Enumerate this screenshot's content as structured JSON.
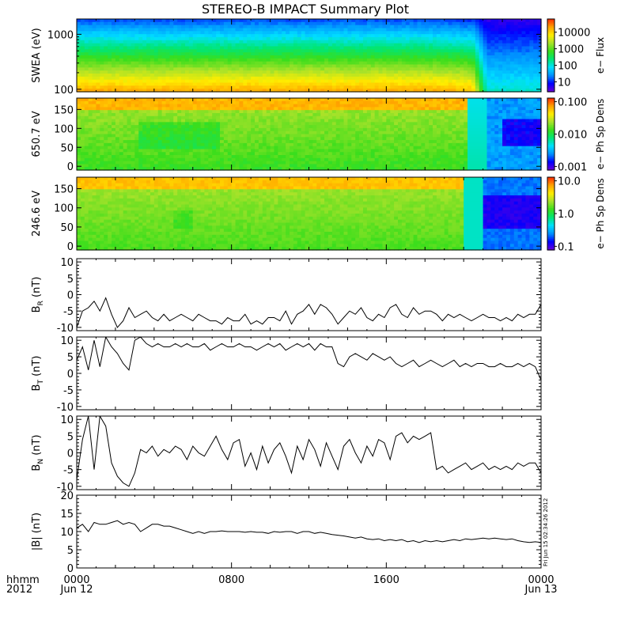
{
  "title": "STEREO-B IMPACT Summary Plot",
  "time_axis": {
    "corner_top": "hhmm",
    "corner_bottom": "2012",
    "ticks": [
      {
        "top": "0000",
        "bottom": "Jun 12",
        "hour": 0
      },
      {
        "top": "0800",
        "bottom": "",
        "hour": 8
      },
      {
        "top": "1600",
        "bottom": "",
        "hour": 16
      },
      {
        "top": "0000",
        "bottom": "Jun 13",
        "hour": 24
      }
    ]
  },
  "timestamp": "Fri Jun 15 02:34:26 2012",
  "colors": {
    "colormap": [
      "#6a00d8",
      "#0000ff",
      "#0090ff",
      "#00e0ff",
      "#00e676",
      "#3ade1c",
      "#a6e22a",
      "#ffee00",
      "#ffa000",
      "#ff2a00"
    ]
  },
  "spectrograms": [
    {
      "id": "swea",
      "ylabel": "SWEA (eV)",
      "ylog": true,
      "ylim": [
        90,
        1900
      ],
      "yticks": [
        {
          "v": 100,
          "label": "100"
        },
        {
          "v": 1000,
          "label": "1000"
        }
      ],
      "colorbar": {
        "label": "e− Flux",
        "ticks": [
          "10",
          "100",
          "1000",
          "10000"
        ],
        "range_log": [
          0.4,
          4.8
        ]
      },
      "structure": {
        "transition_hour": 20.5,
        "before_levels": "red low energy to blue high energy",
        "after_levels": "cyan to violet"
      }
    },
    {
      "id": "pad650",
      "ylabel": "650.7 eV",
      "ylog": false,
      "ylim": [
        -10,
        180
      ],
      "yticks": [
        {
          "v": 0,
          "label": "0"
        },
        {
          "v": 50,
          "label": "50"
        },
        {
          "v": 100,
          "label": "100"
        },
        {
          "v": 150,
          "label": "150"
        }
      ],
      "colorbar": {
        "label": "e− Ph Sp Dens",
        "ticks": [
          "0.001",
          "0.010",
          "0.100"
        ]
      }
    },
    {
      "id": "pad246",
      "ylabel": "246.6 eV",
      "ylog": false,
      "ylim": [
        -10,
        180
      ],
      "yticks": [
        {
          "v": 0,
          "label": "0"
        },
        {
          "v": 50,
          "label": "50"
        },
        {
          "v": 100,
          "label": "100"
        },
        {
          "v": 150,
          "label": "150"
        }
      ],
      "colorbar": {
        "label": "e− Ph Sp Dens",
        "ticks": [
          "0.1",
          "1.0",
          "10.0"
        ]
      }
    }
  ],
  "chart_data": [
    {
      "type": "line",
      "id": "br",
      "ylabel": "B",
      "ylabel_sub": "R",
      "ylabel_unit": "(nT)",
      "ylim": [
        -11,
        11
      ],
      "yticks": [
        -10,
        -5,
        0,
        5,
        10
      ],
      "x": [
        0,
        0.3,
        0.6,
        0.9,
        1.2,
        1.5,
        1.8,
        2.1,
        2.4,
        2.7,
        3,
        3.3,
        3.6,
        3.9,
        4.2,
        4.5,
        4.8,
        5.1,
        5.4,
        5.7,
        6,
        6.3,
        6.6,
        6.9,
        7.2,
        7.5,
        7.8,
        8.1,
        8.4,
        8.7,
        9,
        9.3,
        9.6,
        9.9,
        10.2,
        10.5,
        10.8,
        11.1,
        11.4,
        11.7,
        12,
        12.3,
        12.6,
        12.9,
        13.2,
        13.5,
        13.8,
        14.1,
        14.4,
        14.7,
        15,
        15.3,
        15.6,
        15.9,
        16.2,
        16.5,
        16.8,
        17.1,
        17.4,
        17.7,
        18,
        18.3,
        18.6,
        18.9,
        19.2,
        19.5,
        19.8,
        20.1,
        20.4,
        20.7,
        21,
        21.3,
        21.6,
        21.9,
        22.2,
        22.5,
        22.8,
        23.1,
        23.4,
        23.7,
        24
      ],
      "values": [
        -10,
        -5,
        -4,
        -2,
        -5,
        -1,
        -6,
        -10,
        -8,
        -4,
        -7,
        -6,
        -5,
        -7,
        -8,
        -6,
        -8,
        -7,
        -6,
        -7,
        -8,
        -6,
        -7,
        -8,
        -8,
        -9,
        -7,
        -8,
        -8,
        -6,
        -9,
        -8,
        -9,
        -7,
        -7,
        -8,
        -5,
        -9,
        -6,
        -5,
        -3,
        -6,
        -3,
        -4,
        -6,
        -9,
        -7,
        -5,
        -6,
        -4,
        -7,
        -8,
        -6,
        -7,
        -4,
        -3,
        -6,
        -7,
        -4,
        -6,
        -5,
        -5,
        -6,
        -8,
        -6,
        -7,
        -6,
        -7,
        -8,
        -7,
        -6,
        -7,
        -7,
        -8,
        -7,
        -8,
        -6,
        -7,
        -6,
        -6,
        -3
      ]
    },
    {
      "type": "line",
      "id": "bt",
      "ylabel": "B",
      "ylabel_sub": "T",
      "ylabel_unit": "(nT)",
      "ylim": [
        -11,
        11
      ],
      "yticks": [
        -10,
        -5,
        0,
        5,
        10
      ],
      "x": [
        0,
        0.3,
        0.6,
        0.9,
        1.2,
        1.5,
        1.8,
        2.1,
        2.4,
        2.7,
        3,
        3.3,
        3.6,
        3.9,
        4.2,
        4.5,
        4.8,
        5.1,
        5.4,
        5.7,
        6,
        6.3,
        6.6,
        6.9,
        7.2,
        7.5,
        7.8,
        8.1,
        8.4,
        8.7,
        9,
        9.3,
        9.6,
        9.9,
        10.2,
        10.5,
        10.8,
        11.1,
        11.4,
        11.7,
        12,
        12.3,
        12.6,
        12.9,
        13.2,
        13.5,
        13.8,
        14.1,
        14.4,
        14.7,
        15,
        15.3,
        15.6,
        15.9,
        16.2,
        16.5,
        16.8,
        17.1,
        17.4,
        17.7,
        18,
        18.3,
        18.6,
        18.9,
        19.2,
        19.5,
        19.8,
        20.1,
        20.4,
        20.7,
        21,
        21.3,
        21.6,
        21.9,
        22.2,
        22.5,
        22.8,
        23.1,
        23.4,
        23.7,
        24
      ],
      "values": [
        4,
        8,
        1,
        10,
        2,
        11,
        8,
        6,
        3,
        1,
        10,
        11,
        9,
        8,
        9,
        8,
        8,
        9,
        8,
        9,
        8,
        8,
        9,
        7,
        8,
        9,
        8,
        8,
        9,
        8,
        8,
        7,
        8,
        9,
        8,
        9,
        7,
        8,
        9,
        8,
        9,
        7,
        9,
        8,
        8,
        3,
        2,
        5,
        6,
        5,
        4,
        6,
        5,
        4,
        5,
        3,
        2,
        3,
        4,
        2,
        3,
        4,
        3,
        2,
        3,
        4,
        2,
        3,
        2,
        3,
        3,
        2,
        2,
        3,
        2,
        2,
        3,
        2,
        3,
        2,
        -2
      ]
    },
    {
      "type": "line",
      "id": "bn",
      "ylabel": "B",
      "ylabel_sub": "N",
      "ylabel_unit": "(nT)",
      "ylim": [
        -11,
        11
      ],
      "yticks": [
        -10,
        -5,
        0,
        5,
        10
      ],
      "x": [
        0,
        0.3,
        0.6,
        0.9,
        1.2,
        1.5,
        1.8,
        2.1,
        2.4,
        2.7,
        3,
        3.3,
        3.6,
        3.9,
        4.2,
        4.5,
        4.8,
        5.1,
        5.4,
        5.7,
        6,
        6.3,
        6.6,
        6.9,
        7.2,
        7.5,
        7.8,
        8.1,
        8.4,
        8.7,
        9,
        9.3,
        9.6,
        9.9,
        10.2,
        10.5,
        10.8,
        11.1,
        11.4,
        11.7,
        12,
        12.3,
        12.6,
        12.9,
        13.2,
        13.5,
        13.8,
        14.1,
        14.4,
        14.7,
        15,
        15.3,
        15.6,
        15.9,
        16.2,
        16.5,
        16.8,
        17.1,
        17.4,
        17.7,
        18,
        18.3,
        18.6,
        18.9,
        19.2,
        19.5,
        19.8,
        20.1,
        20.4,
        20.7,
        21,
        21.3,
        21.6,
        21.9,
        22.2,
        22.5,
        22.8,
        23.1,
        23.4,
        23.7,
        24
      ],
      "values": [
        -8,
        4,
        11,
        -5,
        11,
        8,
        -3,
        -7,
        -9,
        -10,
        -6,
        1,
        0,
        2,
        -1,
        1,
        0,
        2,
        1,
        -2,
        2,
        0,
        -1,
        2,
        5,
        1,
        -2,
        3,
        4,
        -4,
        0,
        -5,
        2,
        -3,
        1,
        3,
        -1,
        -6,
        2,
        -2,
        4,
        1,
        -4,
        3,
        -1,
        -5,
        2,
        4,
        0,
        -3,
        2,
        -1,
        4,
        3,
        -2,
        5,
        6,
        3,
        5,
        4,
        5,
        6,
        -5,
        -4,
        -6,
        -5,
        -4,
        -3,
        -5,
        -4,
        -3,
        -5,
        -4,
        -5,
        -4,
        -5,
        -3,
        -4,
        -3,
        -3,
        -6
      ]
    },
    {
      "type": "line",
      "id": "bmag",
      "ylabel": "|B| (nT)",
      "ylim": [
        0,
        20
      ],
      "yticks": [
        0,
        5,
        10,
        15,
        20
      ],
      "x": [
        0,
        0.3,
        0.6,
        0.9,
        1.2,
        1.5,
        1.8,
        2.1,
        2.4,
        2.7,
        3,
        3.3,
        3.6,
        3.9,
        4.2,
        4.5,
        4.8,
        5.1,
        5.4,
        5.7,
        6,
        6.3,
        6.6,
        6.9,
        7.2,
        7.5,
        7.8,
        8.1,
        8.4,
        8.7,
        9,
        9.3,
        9.6,
        9.9,
        10.2,
        10.5,
        10.8,
        11.1,
        11.4,
        11.7,
        12,
        12.3,
        12.6,
        12.9,
        13.2,
        13.5,
        13.8,
        14.1,
        14.4,
        14.7,
        15,
        15.3,
        15.6,
        15.9,
        16.2,
        16.5,
        16.8,
        17.1,
        17.4,
        17.7,
        18,
        18.3,
        18.6,
        18.9,
        19.2,
        19.5,
        19.8,
        20.1,
        20.4,
        20.7,
        21,
        21.3,
        21.6,
        21.9,
        22.2,
        22.5,
        22.8,
        23.1,
        23.4,
        23.7,
        24
      ],
      "values": [
        11,
        12,
        10,
        12.5,
        12,
        12,
        12.5,
        13,
        12,
        12.5,
        12,
        10,
        11,
        12,
        12,
        11.5,
        11.5,
        11,
        10.5,
        10,
        9.5,
        10,
        9.5,
        10,
        10,
        10.2,
        10,
        10,
        10,
        9.8,
        10,
        9.8,
        9.8,
        9.5,
        10,
        9.8,
        10,
        10,
        9.5,
        10,
        10,
        9.5,
        9.8,
        9.5,
        9.2,
        9,
        8.8,
        8.5,
        8.2,
        8.5,
        8,
        7.8,
        8,
        7.5,
        7.8,
        7.5,
        7.8,
        7.2,
        7.5,
        7,
        7.5,
        7.2,
        7.5,
        7.2,
        7.5,
        7.8,
        7.5,
        8,
        7.8,
        8,
        8.2,
        8,
        8.2,
        8,
        7.8,
        8,
        7.5,
        7.2,
        7,
        7.2,
        7
      ]
    }
  ]
}
